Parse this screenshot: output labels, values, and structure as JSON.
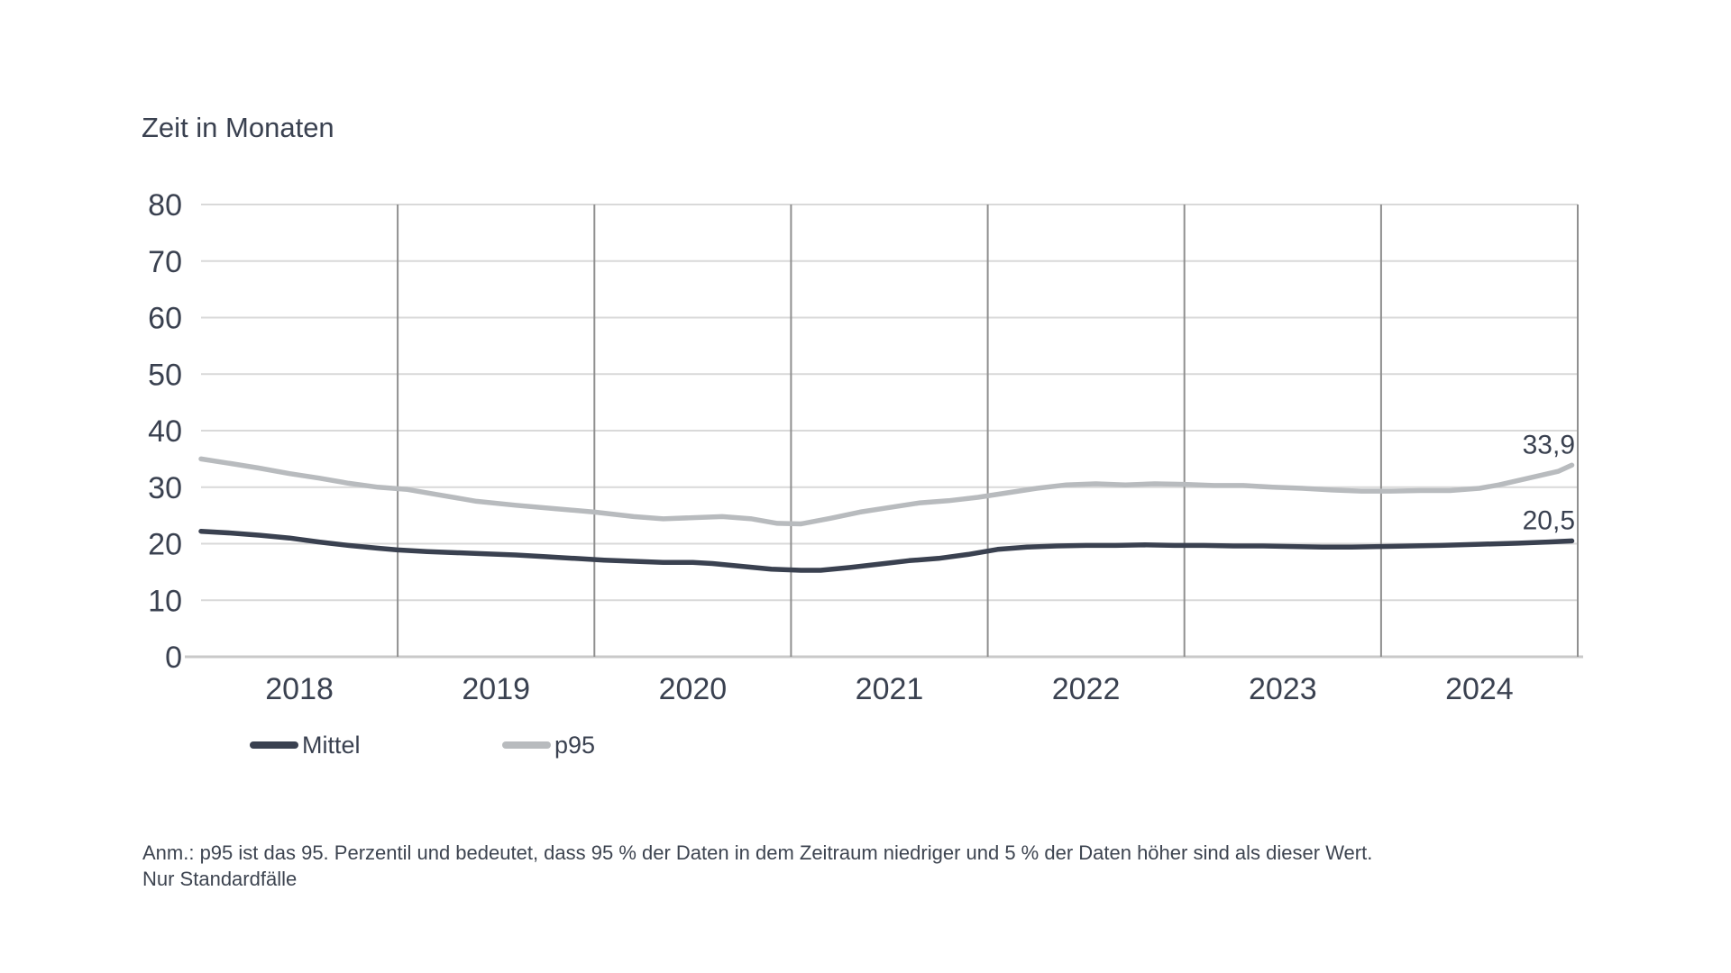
{
  "title": "Zeit in Monaten",
  "legend": {
    "items": [
      {
        "label": "Mittel",
        "color": "#3a4150"
      },
      {
        "label": "p95",
        "color": "#b8bbbe"
      }
    ]
  },
  "footnote": {
    "line1": "Anm.: p95 ist das 95. Perzentil und bedeutet, dass 95 % der Daten in dem Zeitraum niedriger und 5 % der Daten höher sind als dieser Wert.",
    "line2": "Nur Standardfälle"
  },
  "colors": {
    "text": "#3a4150",
    "grid_horizontal": "#d9d9d9",
    "grid_vertical": "#8f8f8f",
    "axis_baseline": "#c9c9c9",
    "mittel_line": "#3a4150",
    "p95_line": "#b8bbbe"
  },
  "chart_data": {
    "type": "line",
    "title": "Zeit in Monaten",
    "ylabel": "Zeit in Monaten",
    "xlabel": "",
    "grid": "on",
    "legend_position": "bottom-left",
    "y_axis": {
      "range": [
        0,
        80
      ],
      "ticks": [
        0,
        10,
        20,
        30,
        40,
        50,
        60,
        70,
        80
      ]
    },
    "x_axis": {
      "range": [
        2018,
        2025
      ],
      "labels": [
        "2018",
        "2019",
        "2020",
        "2021",
        "2022",
        "2023",
        "2024"
      ],
      "gridlines": [
        2019,
        2020,
        2021,
        2022,
        2023,
        2024,
        2025
      ]
    },
    "series": [
      {
        "name": "Mittel",
        "color": "#3a4150",
        "x": [
          2018.0,
          2018.15,
          2018.3,
          2018.45,
          2018.6,
          2018.75,
          2018.9,
          2019.0,
          2019.15,
          2019.3,
          2019.45,
          2019.6,
          2019.75,
          2019.9,
          2020.05,
          2020.2,
          2020.35,
          2020.5,
          2020.6,
          2020.75,
          2020.9,
          2021.05,
          2021.15,
          2021.3,
          2021.45,
          2021.6,
          2021.75,
          2021.9,
          2022.05,
          2022.2,
          2022.35,
          2022.5,
          2022.65,
          2022.8,
          2022.95,
          2023.1,
          2023.25,
          2023.4,
          2023.55,
          2023.7,
          2023.85,
          2024.0,
          2024.15,
          2024.3,
          2024.5,
          2024.7,
          2024.85,
          2024.97
        ],
        "values": [
          22.2,
          21.9,
          21.5,
          21.0,
          20.3,
          19.7,
          19.2,
          18.9,
          18.6,
          18.4,
          18.2,
          18.0,
          17.7,
          17.4,
          17.1,
          16.9,
          16.7,
          16.7,
          16.5,
          16.0,
          15.5,
          15.3,
          15.3,
          15.8,
          16.4,
          17.0,
          17.4,
          18.1,
          19.0,
          19.4,
          19.6,
          19.7,
          19.7,
          19.8,
          19.7,
          19.7,
          19.6,
          19.6,
          19.5,
          19.4,
          19.4,
          19.5,
          19.6,
          19.7,
          19.9,
          20.1,
          20.3,
          20.5
        ]
      },
      {
        "name": "p95",
        "color": "#b8bbbe",
        "x": [
          2018.0,
          2018.13,
          2018.29,
          2018.45,
          2018.6,
          2018.75,
          2018.9,
          2019.05,
          2019.2,
          2019.4,
          2019.6,
          2019.8,
          2020.0,
          2020.2,
          2020.35,
          2020.5,
          2020.65,
          2020.8,
          2020.93,
          2021.05,
          2021.2,
          2021.35,
          2021.5,
          2021.65,
          2021.8,
          2021.95,
          2022.1,
          2022.25,
          2022.4,
          2022.55,
          2022.7,
          2022.85,
          2023.0,
          2023.15,
          2023.3,
          2023.45,
          2023.6,
          2023.75,
          2023.9,
          2024.05,
          2024.2,
          2024.35,
          2024.5,
          2024.6,
          2024.7,
          2024.8,
          2024.9,
          2024.97
        ],
        "values": [
          35.0,
          34.3,
          33.4,
          32.4,
          31.6,
          30.7,
          30.0,
          29.6,
          28.7,
          27.5,
          26.8,
          26.2,
          25.6,
          24.8,
          24.4,
          24.6,
          24.8,
          24.4,
          23.6,
          23.5,
          24.5,
          25.6,
          26.4,
          27.2,
          27.6,
          28.2,
          29.0,
          29.8,
          30.4,
          30.6,
          30.4,
          30.6,
          30.5,
          30.3,
          30.3,
          30.0,
          29.8,
          29.5,
          29.3,
          29.3,
          29.4,
          29.4,
          29.8,
          30.4,
          31.2,
          32.0,
          32.8,
          33.9
        ]
      }
    ],
    "end_labels": [
      {
        "series": "p95",
        "text": "33,9",
        "value": 33.9
      },
      {
        "series": "Mittel",
        "text": "20,5",
        "value": 20.5
      }
    ]
  }
}
